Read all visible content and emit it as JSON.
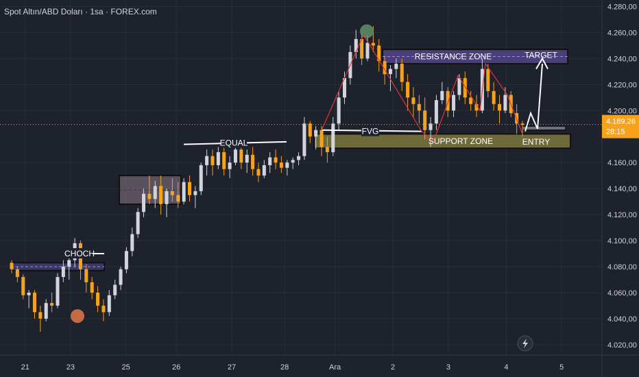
{
  "chart_data": {
    "type": "candlestick",
    "title": "Spot Altın/ABD Doları · 1sa · FOREX.com",
    "y_ticks": [
      "4.280,00",
      "4.260,00",
      "4.240,00",
      "4.220,00",
      "4.200,00",
      "4.160,00",
      "4.140,00",
      "4.120,00",
      "4.100,00",
      "4.080,00",
      "4.060,00",
      "4.040,00",
      "4.020,00"
    ],
    "y_tick_values": [
      4280,
      4260,
      4240,
      4220,
      4200,
      4160,
      4140,
      4120,
      4100,
      4080,
      4060,
      4040,
      4020
    ],
    "ylim": [
      4012,
      4285
    ],
    "x_ticks": [
      "21",
      "23",
      "25",
      "26",
      "27",
      "28",
      "Ara",
      "2",
      "3",
      "4",
      "5"
    ],
    "x_tick_positions": [
      2.5,
      4.3,
      6.5,
      8.5,
      10.7,
      12.8,
      14.8,
      17.1,
      19.3,
      21.6,
      23.8
    ],
    "xlim": [
      1.5,
      25.4
    ],
    "price_label": "4.189,26",
    "countdown_label": "28:15",
    "current_price": 4189.26,
    "candles_ohlc": [
      [
        4083,
        4085,
        4075,
        4078
      ],
      [
        4078,
        4080,
        4068,
        4072
      ],
      [
        4072,
        4074,
        4055,
        4058
      ],
      [
        4058,
        4062,
        4048,
        4060
      ],
      [
        4060,
        4062,
        4040,
        4045
      ],
      [
        4045,
        4050,
        4030,
        4040
      ],
      [
        4040,
        4055,
        4038,
        4052
      ],
      [
        4052,
        4060,
        4045,
        4050
      ],
      [
        4050,
        4075,
        4048,
        4072
      ],
      [
        4072,
        4085,
        4068,
        4080
      ],
      [
        4080,
        4090,
        4070,
        4085
      ],
      [
        4085,
        4102,
        4080,
        4098
      ],
      [
        4098,
        4100,
        4070,
        4078
      ],
      [
        4078,
        4082,
        4060,
        4068
      ],
      [
        4068,
        4072,
        4055,
        4060
      ],
      [
        4060,
        4065,
        4045,
        4050
      ],
      [
        4050,
        4055,
        4038,
        4045
      ],
      [
        4045,
        4062,
        4042,
        4058
      ],
      [
        4058,
        4070,
        4055,
        4066
      ],
      [
        4066,
        4080,
        4062,
        4078
      ],
      [
        4078,
        4095,
        4075,
        4092
      ],
      [
        4092,
        4110,
        4088,
        4105
      ],
      [
        4105,
        4125,
        4102,
        4122
      ],
      [
        4122,
        4140,
        4118,
        4136
      ],
      [
        4136,
        4150,
        4128,
        4132
      ],
      [
        4132,
        4146,
        4125,
        4142
      ],
      [
        4142,
        4150,
        4120,
        4128
      ],
      [
        4128,
        4140,
        4118,
        4138
      ],
      [
        4138,
        4148,
        4130,
        4135
      ],
      [
        4135,
        4145,
        4125,
        4130
      ],
      [
        4130,
        4148,
        4128,
        4145
      ],
      [
        4145,
        4150,
        4130,
        4135
      ],
      [
        4135,
        4142,
        4125,
        4138
      ],
      [
        4138,
        4160,
        4135,
        4158
      ],
      [
        4158,
        4170,
        4150,
        4165
      ],
      [
        4165,
        4170,
        4150,
        4158
      ],
      [
        4158,
        4172,
        4155,
        4168
      ],
      [
        4168,
        4172,
        4150,
        4155
      ],
      [
        4155,
        4165,
        4148,
        4160
      ],
      [
        4160,
        4175,
        4158,
        4170
      ],
      [
        4170,
        4172,
        4155,
        4160
      ],
      [
        4160,
        4170,
        4152,
        4166
      ],
      [
        4166,
        4172,
        4150,
        4155
      ],
      [
        4155,
        4160,
        4145,
        4150
      ],
      [
        4150,
        4162,
        4148,
        4158
      ],
      [
        4158,
        4168,
        4152,
        4164
      ],
      [
        4164,
        4170,
        4155,
        4160
      ],
      [
        4160,
        4165,
        4152,
        4156
      ],
      [
        4156,
        4162,
        4150,
        4160
      ],
      [
        4160,
        4164,
        4155,
        4162
      ],
      [
        4162,
        4168,
        4158,
        4165
      ],
      [
        4165,
        4195,
        4162,
        4190
      ],
      [
        4190,
        4192,
        4175,
        4180
      ],
      [
        4180,
        4188,
        4170,
        4185
      ],
      [
        4185,
        4188,
        4165,
        4172
      ],
      [
        4172,
        4180,
        4160,
        4168
      ],
      [
        4168,
        4195,
        4165,
        4190
      ],
      [
        4190,
        4215,
        4185,
        4210
      ],
      [
        4210,
        4230,
        4205,
        4225
      ],
      [
        4225,
        4250,
        4220,
        4245
      ],
      [
        4245,
        4262,
        4240,
        4255
      ],
      [
        4255,
        4260,
        4235,
        4240
      ],
      [
        4240,
        4258,
        4238,
        4252
      ],
      [
        4252,
        4265,
        4245,
        4250
      ],
      [
        4250,
        4255,
        4230,
        4238
      ],
      [
        4238,
        4242,
        4220,
        4228
      ],
      [
        4228,
        4235,
        4215,
        4232
      ],
      [
        4232,
        4240,
        4225,
        4236
      ],
      [
        4236,
        4240,
        4215,
        4222
      ],
      [
        4222,
        4228,
        4200,
        4210
      ],
      [
        4210,
        4218,
        4195,
        4205
      ],
      [
        4205,
        4212,
        4190,
        4200
      ],
      [
        4200,
        4210,
        4178,
        4185
      ],
      [
        4185,
        4195,
        4172,
        4190
      ],
      [
        4190,
        4212,
        4185,
        4208
      ],
      [
        4208,
        4222,
        4205,
        4215
      ],
      [
        4215,
        4218,
        4195,
        4200
      ],
      [
        4200,
        4215,
        4195,
        4212
      ],
      [
        4212,
        4228,
        4208,
        4225
      ],
      [
        4225,
        4230,
        4205,
        4210
      ],
      [
        4210,
        4215,
        4200,
        4205
      ],
      [
        4205,
        4212,
        4195,
        4200
      ],
      [
        4200,
        4240,
        4198,
        4232
      ],
      [
        4232,
        4236,
        4210,
        4215
      ],
      [
        4215,
        4222,
        4200,
        4205
      ],
      [
        4205,
        4212,
        4190,
        4200
      ],
      [
        4200,
        4218,
        4198,
        4212
      ],
      [
        4212,
        4215,
        4195,
        4198
      ],
      [
        4198,
        4205,
        4182,
        4190
      ],
      [
        4190,
        4192,
        4180,
        4189
      ]
    ]
  },
  "annotations": {
    "choch": "CHOCH",
    "equal": "EQUAL",
    "fvg": "FVG",
    "resistance": "RESISTANCE ZONE",
    "support": "SUPPORT ZONE",
    "target": "TARGET",
    "entry": "ENTRY"
  },
  "colors": {
    "background": "#1e222d",
    "bull": "#d1d4dc",
    "bear": "#f7a21b",
    "resistance_fill": "#4a3f7a",
    "support_fill": "#6e6a3a",
    "grid": "#2a2e39",
    "text": "#d1d4dc",
    "price_label_bg": "#f7a21b",
    "zigzag": "#e03535"
  }
}
